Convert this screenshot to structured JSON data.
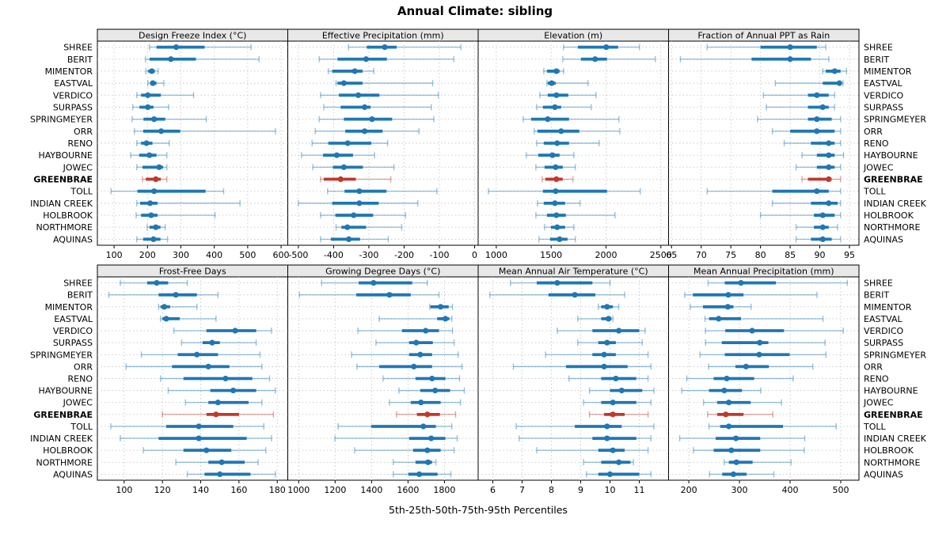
{
  "title": "Annual Climate: sibling",
  "xlabel": "5th-25th-50th-75th-95th Percentiles",
  "colors": {
    "primary": "#1f77b4",
    "highlight": "#c0392b",
    "strip_bg": "#e8e8e8",
    "grid": "#c8c8c8",
    "border": "#000000"
  },
  "highlight_site": "GREENBRAE",
  "sites": [
    "SHREE",
    "BERIT",
    "MIMENTOR",
    "EASTVAL",
    "VERDICO",
    "SURPASS",
    "SPRINGMEYER",
    "ORR",
    "RENO",
    "HAYBOURNE",
    "JOWEC",
    "GREENBRAE",
    "TOLL",
    "INDIAN CREEK",
    "HOLBROOK",
    "NORTHMORE",
    "AQUINAS"
  ],
  "chart_data": {
    "type": "dotplot-percentiles",
    "percentile_labels": [
      "5th",
      "25th",
      "50th",
      "75th",
      "95th"
    ],
    "legend_position": "none",
    "grid": "dotted",
    "panels": [
      {
        "title": "Design Freeze Index (°C)",
        "row": 0,
        "col": 0,
        "xlim": [
          50,
          620
        ],
        "ticks": [
          100,
          200,
          300,
          400,
          500,
          600
        ],
        "values": [
          [
            206,
            227,
            286,
            371,
            510
          ],
          [
            194,
            206,
            270,
            345,
            534
          ],
          [
            195,
            202,
            213,
            222,
            232
          ],
          [
            201,
            208,
            216,
            227,
            249
          ],
          [
            168,
            181,
            201,
            240,
            338
          ],
          [
            156,
            176,
            201,
            218,
            263
          ],
          [
            154,
            188,
            220,
            253,
            376
          ],
          [
            161,
            187,
            241,
            298,
            583
          ],
          [
            168,
            181,
            197,
            215,
            265
          ],
          [
            150,
            175,
            206,
            227,
            258
          ],
          [
            168,
            185,
            235,
            247,
            258
          ],
          [
            185,
            195,
            225,
            240,
            258
          ],
          [
            91,
            170,
            220,
            374,
            428
          ],
          [
            168,
            178,
            208,
            230,
            477
          ],
          [
            166,
            181,
            211,
            230,
            402
          ],
          [
            199,
            206,
            225,
            239,
            253
          ],
          [
            168,
            187,
            218,
            239,
            260
          ]
        ]
      },
      {
        "title": "Effective Precipitation (mm)",
        "row": 0,
        "col": 1,
        "xlim": [
          -530,
          10
        ],
        "ticks": [
          -500,
          -400,
          -300,
          -200,
          -100,
          0
        ],
        "values": [
          [
            -358,
            -306,
            -255,
            -221,
            -39
          ],
          [
            -441,
            -389,
            -308,
            -249,
            -59
          ],
          [
            -415,
            -404,
            -340,
            -318,
            -286
          ],
          [
            -393,
            -389,
            -371,
            -318,
            -119
          ],
          [
            -437,
            -385,
            -330,
            -270,
            -103
          ],
          [
            -428,
            -380,
            -312,
            -295,
            -123
          ],
          [
            -441,
            -371,
            -291,
            -234,
            -116
          ],
          [
            -452,
            -367,
            -312,
            -261,
            -158
          ],
          [
            -461,
            -415,
            -360,
            -293,
            -247
          ],
          [
            -491,
            -430,
            -391,
            -345,
            -284
          ],
          [
            -459,
            -402,
            -371,
            -317,
            -229
          ],
          [
            -437,
            -428,
            -380,
            -337,
            -238
          ],
          [
            -417,
            -369,
            -327,
            -250,
            -107
          ],
          [
            -500,
            -404,
            -327,
            -272,
            -161
          ],
          [
            -437,
            -395,
            -343,
            -288,
            -196
          ],
          [
            -393,
            -378,
            -361,
            -308,
            -207
          ],
          [
            -437,
            -408,
            -357,
            -325,
            -245
          ]
        ]
      },
      {
        "title": "Elevation (m)",
        "row": 0,
        "col": 2,
        "xlim": [
          835,
          2570
        ],
        "ticks": [
          1000,
          1500,
          2000,
          2500
        ],
        "values": [
          [
            1613,
            1743,
            2002,
            2110,
            2305
          ],
          [
            1606,
            1771,
            1901,
            2009,
            2449
          ],
          [
            1433,
            1462,
            1548,
            1577,
            1613
          ],
          [
            1462,
            1469,
            1505,
            1541,
            1836
          ],
          [
            1397,
            1469,
            1548,
            1656,
            1908
          ],
          [
            1368,
            1425,
            1534,
            1591,
            1865
          ],
          [
            1245,
            1317,
            1469,
            1663,
            2118
          ],
          [
            1346,
            1375,
            1591,
            1757,
            2125
          ],
          [
            1368,
            1433,
            1555,
            1663,
            1937
          ],
          [
            1274,
            1382,
            1512,
            1577,
            1707
          ],
          [
            1361,
            1440,
            1541,
            1606,
            1721
          ],
          [
            1418,
            1447,
            1548,
            1606,
            1699
          ],
          [
            928,
            1425,
            1541,
            2009,
            2312
          ],
          [
            1375,
            1433,
            1534,
            1627,
            1764
          ],
          [
            1361,
            1462,
            1548,
            1634,
            2082
          ],
          [
            1440,
            1498,
            1555,
            1627,
            1707
          ],
          [
            1389,
            1490,
            1577,
            1649,
            1721
          ]
        ]
      },
      {
        "title": "Fraction of Annual PPT as Rain",
        "row": 0,
        "col": 3,
        "xlim": [
          64.5,
          96.6
        ],
        "ticks": [
          65,
          70,
          75,
          80,
          85,
          90,
          95
        ],
        "values": [
          [
            71,
            80,
            85,
            89.5,
            91
          ],
          [
            66.5,
            78.5,
            85,
            88.5,
            91.5
          ],
          [
            90.5,
            91,
            92.5,
            93.5,
            94.5
          ],
          [
            82.5,
            90.5,
            93.3,
            93.6,
            93.9
          ],
          [
            80.5,
            88,
            89.5,
            91.5,
            92.5
          ],
          [
            81,
            88,
            90.5,
            91.5,
            92.5
          ],
          [
            79.5,
            88,
            89.5,
            92,
            93.5
          ],
          [
            82,
            85,
            89.5,
            92.5,
            93.5
          ],
          [
            84,
            88.5,
            91.5,
            92.5,
            93.5
          ],
          [
            87,
            89.5,
            91.5,
            92.5,
            94
          ],
          [
            86,
            89.5,
            91.5,
            92.5,
            93.5
          ],
          [
            87,
            88,
            91.5,
            92,
            93.5
          ],
          [
            71,
            82,
            89.5,
            91.5,
            93.5
          ],
          [
            82,
            88.5,
            91.5,
            93,
            93.5
          ],
          [
            80,
            89,
            90.5,
            92.5,
            93.5
          ],
          [
            86,
            89,
            90.5,
            91.5,
            93
          ],
          [
            86,
            88.5,
            90.5,
            92,
            93.5
          ]
        ]
      },
      {
        "title": "Frost-Free Days",
        "row": 1,
        "col": 0,
        "xlim": [
          86,
          185.5
        ],
        "ticks": [
          100,
          120,
          140,
          160,
          180
        ],
        "values": [
          [
            98,
            112,
            117,
            123,
            133
          ],
          [
            92,
            118,
            127,
            138,
            149
          ],
          [
            118,
            119,
            121,
            124,
            138
          ],
          [
            119,
            120,
            122,
            129,
            148
          ],
          [
            126,
            143,
            158,
            169,
            177
          ],
          [
            130,
            141,
            146,
            150,
            169
          ],
          [
            109,
            128,
            138,
            149,
            171
          ],
          [
            101,
            125,
            144,
            155,
            172
          ],
          [
            119,
            131,
            153,
            167,
            176
          ],
          [
            123,
            145,
            157,
            169,
            179
          ],
          [
            132,
            144,
            149,
            165,
            172
          ],
          [
            120,
            143,
            148,
            160,
            178
          ],
          [
            93,
            122,
            139,
            157,
            173
          ],
          [
            98,
            118,
            139,
            164,
            177
          ],
          [
            110,
            131,
            143,
            156,
            174
          ],
          [
            127,
            144,
            151,
            163,
            170
          ],
          [
            133,
            142,
            150,
            166,
            179
          ]
        ]
      },
      {
        "title": "Growing Degree Days (°C)",
        "row": 1,
        "col": 1,
        "xlim": [
          940,
          1985
        ],
        "ticks": [
          1000,
          1200,
          1400,
          1600,
          1800
        ],
        "values": [
          [
            1126,
            1329,
            1411,
            1623,
            1706
          ],
          [
            1004,
            1316,
            1498,
            1615,
            1770
          ],
          [
            1719,
            1723,
            1779,
            1823,
            1844
          ],
          [
            1442,
            1760,
            1805,
            1827,
            1840
          ],
          [
            1325,
            1567,
            1697,
            1770,
            1844
          ],
          [
            1424,
            1606,
            1645,
            1736,
            1853
          ],
          [
            1290,
            1606,
            1667,
            1732,
            1875
          ],
          [
            1320,
            1442,
            1632,
            1732,
            1896
          ],
          [
            1463,
            1641,
            1732,
            1805,
            1883
          ],
          [
            1550,
            1667,
            1749,
            1831,
            1909
          ],
          [
            1498,
            1615,
            1671,
            1779,
            1888
          ],
          [
            1537,
            1649,
            1706,
            1775,
            1861
          ],
          [
            1216,
            1398,
            1684,
            1753,
            1840
          ],
          [
            1199,
            1606,
            1727,
            1805,
            1870
          ],
          [
            1307,
            1628,
            1706,
            1779,
            1853
          ],
          [
            1519,
            1641,
            1710,
            1732,
            1753
          ],
          [
            1519,
            1602,
            1662,
            1762,
            1835
          ]
        ]
      },
      {
        "title": "Mean Annual Air Temperature (°C)",
        "row": 1,
        "col": 2,
        "xlim": [
          5.5,
          12
        ],
        "ticks": [
          6,
          7,
          8,
          9,
          10,
          11
        ],
        "values": [
          [
            6.6,
            7.5,
            8.2,
            9.4,
            10.0
          ],
          [
            5.9,
            7.9,
            8.8,
            9.5,
            10.5
          ],
          [
            9.6,
            9.7,
            9.9,
            10.1,
            10.3
          ],
          [
            8.9,
            9.7,
            9.95,
            10.05,
            10.1
          ],
          [
            8.2,
            9.4,
            10.3,
            11.0,
            11.2
          ],
          [
            8.9,
            9.6,
            9.9,
            10.2,
            11.1
          ],
          [
            7.8,
            9.4,
            9.8,
            10.2,
            11.3
          ],
          [
            6.7,
            8.5,
            9.8,
            10.6,
            11.4
          ],
          [
            8.6,
            9.7,
            10.2,
            10.9,
            11.3
          ],
          [
            9.3,
            10.0,
            10.4,
            11.1,
            11.5
          ],
          [
            9.1,
            9.7,
            10.1,
            10.9,
            11.4
          ],
          [
            9.3,
            9.8,
            10.1,
            10.5,
            11.3
          ],
          [
            6.8,
            8.8,
            9.9,
            10.4,
            11.5
          ],
          [
            6.9,
            9.4,
            9.9,
            10.9,
            11.4
          ],
          [
            7.5,
            9.6,
            10.1,
            10.5,
            11.3
          ],
          [
            9.1,
            9.7,
            10.3,
            10.7,
            10.8
          ],
          [
            9.2,
            9.6,
            10.0,
            11.0,
            11.4
          ]
        ]
      },
      {
        "title": "Mean Annual Precipitation (mm)",
        "row": 1,
        "col": 3,
        "xlim": [
          160,
          536
        ],
        "ticks": [
          200,
          300,
          400,
          500
        ],
        "values": [
          [
            238,
            271,
            303,
            372,
            513
          ],
          [
            192,
            208,
            278,
            308,
            453
          ],
          [
            203,
            228,
            277,
            288,
            323
          ],
          [
            232,
            240,
            259,
            303,
            465
          ],
          [
            233,
            272,
            325,
            388,
            505
          ],
          [
            233,
            265,
            340,
            357,
            469
          ],
          [
            222,
            271,
            339,
            399,
            471
          ],
          [
            239,
            292,
            313,
            358,
            445
          ],
          [
            196,
            249,
            275,
            329,
            406
          ],
          [
            186,
            240,
            270,
            305,
            342
          ],
          [
            229,
            256,
            279,
            322,
            383
          ],
          [
            237,
            256,
            273,
            308,
            366
          ],
          [
            240,
            262,
            279,
            386,
            491
          ],
          [
            182,
            253,
            293,
            341,
            429
          ],
          [
            209,
            249,
            284,
            341,
            428
          ],
          [
            270,
            279,
            294,
            326,
            402
          ],
          [
            241,
            266,
            288,
            314,
            368
          ]
        ]
      }
    ]
  }
}
